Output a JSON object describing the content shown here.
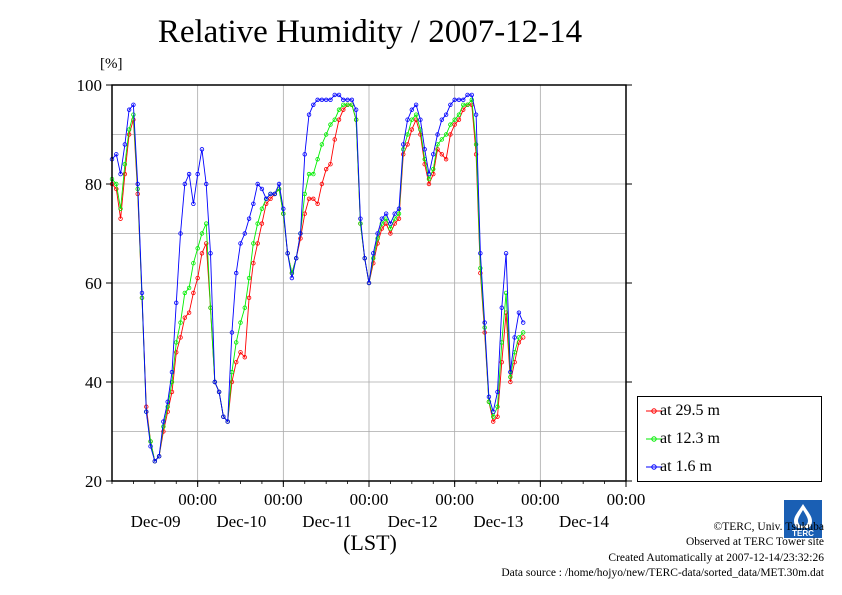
{
  "title": "Relative Humidity / 2007-12-14",
  "unit_label": "[%]",
  "x_axis_title": "(LST)",
  "legend": [
    {
      "label": "at 29.5 m",
      "color": "#ff0000"
    },
    {
      "label": "at 12.3 m",
      "color": "#00ee00"
    },
    {
      "label": "at 1.6 m",
      "color": "#0000ff"
    }
  ],
  "credits": {
    "line1": "©TERC, Univ. Tsukuba",
    "line2": "Observed at TERC Tower site",
    "line3": "Created Automatically at 2007-12-14/23:32:26",
    "line4": "Data source : /home/hojyo/new/TERC-data/sorted_data/MET.30m.dat"
  },
  "logo_text": "TERC",
  "chart_data": {
    "type": "line",
    "xlabel": "(LST)",
    "ylabel": "[%]",
    "ylim": [
      20,
      100
    ],
    "yticks": [
      20,
      40,
      60,
      80,
      100
    ],
    "xlim_days": [
      -1.0,
      5.0
    ],
    "xticks": [
      {
        "time": "00:00",
        "date": "Dec-09",
        "day": 0
      },
      {
        "time": "00:00",
        "date": "Dec-10",
        "day": 1
      },
      {
        "time": "00:00",
        "date": "Dec-11",
        "day": 2
      },
      {
        "time": "00:00",
        "date": "Dec-12",
        "day": 3
      },
      {
        "time": "00:00",
        "date": "Dec-13",
        "day": 4
      },
      {
        "time": "00:00",
        "date": "Dec-14",
        "day": 5
      }
    ],
    "grid": true,
    "legend_position": "outside-right-bottom",
    "series": [
      {
        "name": "at 29.5 m",
        "color": "#ff0000",
        "points": [
          [
            -1.0,
            80
          ],
          [
            -0.95,
            79
          ],
          [
            -0.9,
            73
          ],
          [
            -0.85,
            82
          ],
          [
            -0.8,
            90
          ],
          [
            -0.75,
            93
          ],
          [
            -0.7,
            78
          ],
          [
            -0.65,
            57
          ],
          [
            -0.6,
            35
          ],
          [
            -0.55,
            28
          ],
          [
            -0.5,
            24
          ],
          [
            -0.45,
            25
          ],
          [
            -0.4,
            30
          ],
          [
            -0.35,
            34
          ],
          [
            -0.3,
            38
          ],
          [
            -0.25,
            46
          ],
          [
            -0.2,
            49
          ],
          [
            -0.15,
            53
          ],
          [
            -0.1,
            54
          ],
          [
            -0.05,
            58
          ],
          [
            0.0,
            61
          ],
          [
            0.05,
            66
          ],
          [
            0.1,
            68
          ],
          [
            0.15,
            55
          ],
          [
            0.2,
            40
          ],
          [
            0.25,
            38
          ],
          [
            0.3,
            33
          ],
          [
            0.35,
            32
          ],
          [
            0.4,
            40
          ],
          [
            0.45,
            44
          ],
          [
            0.5,
            46
          ],
          [
            0.55,
            45
          ],
          [
            0.6,
            57
          ],
          [
            0.65,
            64
          ],
          [
            0.7,
            68
          ],
          [
            0.75,
            72
          ],
          [
            0.8,
            76
          ],
          [
            0.85,
            77
          ],
          [
            0.9,
            78
          ],
          [
            0.95,
            79
          ],
          [
            1.0,
            74
          ],
          [
            1.05,
            66
          ],
          [
            1.1,
            62
          ],
          [
            1.15,
            65
          ],
          [
            1.2,
            69
          ],
          [
            1.25,
            74
          ],
          [
            1.3,
            77
          ],
          [
            1.35,
            77
          ],
          [
            1.4,
            76
          ],
          [
            1.45,
            80
          ],
          [
            1.5,
            83
          ],
          [
            1.55,
            84
          ],
          [
            1.6,
            89
          ],
          [
            1.65,
            93
          ],
          [
            1.7,
            95
          ],
          [
            1.75,
            96
          ],
          [
            1.8,
            96
          ],
          [
            1.85,
            93
          ],
          [
            1.9,
            72
          ],
          [
            1.95,
            65
          ],
          [
            2.0,
            60
          ],
          [
            2.05,
            64
          ],
          [
            2.1,
            68
          ],
          [
            2.15,
            71
          ],
          [
            2.2,
            72
          ],
          [
            2.25,
            70
          ],
          [
            2.3,
            72
          ],
          [
            2.35,
            73
          ],
          [
            2.4,
            86
          ],
          [
            2.45,
            88
          ],
          [
            2.5,
            91
          ],
          [
            2.55,
            93
          ],
          [
            2.6,
            90
          ],
          [
            2.65,
            84
          ],
          [
            2.7,
            80
          ],
          [
            2.75,
            82
          ],
          [
            2.8,
            87
          ],
          [
            2.85,
            86
          ],
          [
            2.9,
            85
          ],
          [
            2.95,
            90
          ],
          [
            3.0,
            92
          ],
          [
            3.05,
            93
          ],
          [
            3.1,
            95
          ],
          [
            3.15,
            96
          ],
          [
            3.2,
            96
          ],
          [
            3.25,
            86
          ],
          [
            3.3,
            62
          ],
          [
            3.35,
            50
          ],
          [
            3.4,
            36
          ],
          [
            3.45,
            32
          ],
          [
            3.5,
            33
          ],
          [
            3.55,
            44
          ],
          [
            3.6,
            54
          ],
          [
            3.65,
            40
          ],
          [
            3.7,
            44
          ],
          [
            3.75,
            48
          ],
          [
            3.8,
            49
          ]
        ]
      },
      {
        "name": "at 12.3 m",
        "color": "#00ee00",
        "points": [
          [
            -1.0,
            81
          ],
          [
            -0.95,
            80
          ],
          [
            -0.9,
            75
          ],
          [
            -0.85,
            84
          ],
          [
            -0.8,
            91
          ],
          [
            -0.75,
            94
          ],
          [
            -0.7,
            79
          ],
          [
            -0.65,
            57
          ],
          [
            -0.6,
            34
          ],
          [
            -0.55,
            28
          ],
          [
            -0.5,
            24
          ],
          [
            -0.45,
            25
          ],
          [
            -0.4,
            31
          ],
          [
            -0.35,
            35
          ],
          [
            -0.3,
            40
          ],
          [
            -0.25,
            48
          ],
          [
            -0.2,
            52
          ],
          [
            -0.15,
            58
          ],
          [
            -0.1,
            59
          ],
          [
            -0.05,
            64
          ],
          [
            0.0,
            67
          ],
          [
            0.05,
            70
          ],
          [
            0.1,
            72
          ],
          [
            0.15,
            55
          ],
          [
            0.2,
            40
          ],
          [
            0.25,
            38
          ],
          [
            0.3,
            33
          ],
          [
            0.35,
            32
          ],
          [
            0.4,
            42
          ],
          [
            0.45,
            48
          ],
          [
            0.5,
            52
          ],
          [
            0.55,
            55
          ],
          [
            0.6,
            61
          ],
          [
            0.65,
            68
          ],
          [
            0.7,
            72
          ],
          [
            0.75,
            75
          ],
          [
            0.8,
            77
          ],
          [
            0.85,
            78
          ],
          [
            0.9,
            78
          ],
          [
            0.95,
            79
          ],
          [
            1.0,
            74
          ],
          [
            1.05,
            66
          ],
          [
            1.1,
            62
          ],
          [
            1.15,
            65
          ],
          [
            1.2,
            70
          ],
          [
            1.25,
            78
          ],
          [
            1.3,
            82
          ],
          [
            1.35,
            82
          ],
          [
            1.4,
            85
          ],
          [
            1.45,
            88
          ],
          [
            1.5,
            90
          ],
          [
            1.55,
            92
          ],
          [
            1.6,
            93
          ],
          [
            1.65,
            95
          ],
          [
            1.7,
            96
          ],
          [
            1.75,
            96
          ],
          [
            1.8,
            96
          ],
          [
            1.85,
            93
          ],
          [
            1.9,
            72
          ],
          [
            1.95,
            65
          ],
          [
            2.0,
            60
          ],
          [
            2.05,
            65
          ],
          [
            2.1,
            69
          ],
          [
            2.15,
            72
          ],
          [
            2.2,
            73
          ],
          [
            2.25,
            71
          ],
          [
            2.3,
            73
          ],
          [
            2.35,
            74
          ],
          [
            2.4,
            87
          ],
          [
            2.45,
            90
          ],
          [
            2.5,
            93
          ],
          [
            2.55,
            94
          ],
          [
            2.6,
            91
          ],
          [
            2.65,
            85
          ],
          [
            2.7,
            81
          ],
          [
            2.75,
            83
          ],
          [
            2.8,
            88
          ],
          [
            2.85,
            89
          ],
          [
            2.9,
            90
          ],
          [
            2.95,
            92
          ],
          [
            3.0,
            93
          ],
          [
            3.05,
            94
          ],
          [
            3.1,
            96
          ],
          [
            3.15,
            96
          ],
          [
            3.2,
            97
          ],
          [
            3.25,
            88
          ],
          [
            3.3,
            63
          ],
          [
            3.35,
            51
          ],
          [
            3.4,
            36
          ],
          [
            3.45,
            33
          ],
          [
            3.5,
            35
          ],
          [
            3.55,
            48
          ],
          [
            3.6,
            58
          ],
          [
            3.65,
            41
          ],
          [
            3.7,
            46
          ],
          [
            3.75,
            49
          ],
          [
            3.8,
            50
          ]
        ]
      },
      {
        "name": "at 1.6 m",
        "color": "#0000ff",
        "points": [
          [
            -1.0,
            85
          ],
          [
            -0.95,
            86
          ],
          [
            -0.9,
            82
          ],
          [
            -0.85,
            88
          ],
          [
            -0.8,
            95
          ],
          [
            -0.75,
            96
          ],
          [
            -0.7,
            80
          ],
          [
            -0.65,
            58
          ],
          [
            -0.6,
            34
          ],
          [
            -0.55,
            27
          ],
          [
            -0.5,
            24
          ],
          [
            -0.45,
            25
          ],
          [
            -0.4,
            32
          ],
          [
            -0.35,
            36
          ],
          [
            -0.3,
            42
          ],
          [
            -0.25,
            56
          ],
          [
            -0.2,
            70
          ],
          [
            -0.15,
            80
          ],
          [
            -0.1,
            82
          ],
          [
            -0.05,
            76
          ],
          [
            0.0,
            82
          ],
          [
            0.05,
            87
          ],
          [
            0.1,
            80
          ],
          [
            0.15,
            66
          ],
          [
            0.2,
            40
          ],
          [
            0.25,
            38
          ],
          [
            0.3,
            33
          ],
          [
            0.35,
            32
          ],
          [
            0.4,
            50
          ],
          [
            0.45,
            62
          ],
          [
            0.5,
            68
          ],
          [
            0.55,
            70
          ],
          [
            0.6,
            73
          ],
          [
            0.65,
            76
          ],
          [
            0.7,
            80
          ],
          [
            0.75,
            79
          ],
          [
            0.8,
            77
          ],
          [
            0.85,
            78
          ],
          [
            0.9,
            78
          ],
          [
            0.95,
            80
          ],
          [
            1.0,
            75
          ],
          [
            1.05,
            66
          ],
          [
            1.1,
            61
          ],
          [
            1.15,
            65
          ],
          [
            1.2,
            70
          ],
          [
            1.25,
            86
          ],
          [
            1.3,
            94
          ],
          [
            1.35,
            96
          ],
          [
            1.4,
            97
          ],
          [
            1.45,
            97
          ],
          [
            1.5,
            97
          ],
          [
            1.55,
            97
          ],
          [
            1.6,
            98
          ],
          [
            1.65,
            98
          ],
          [
            1.7,
            97
          ],
          [
            1.75,
            97
          ],
          [
            1.8,
            97
          ],
          [
            1.85,
            95
          ],
          [
            1.9,
            73
          ],
          [
            1.95,
            65
          ],
          [
            2.0,
            60
          ],
          [
            2.05,
            66
          ],
          [
            2.1,
            70
          ],
          [
            2.15,
            73
          ],
          [
            2.2,
            74
          ],
          [
            2.25,
            72
          ],
          [
            2.3,
            74
          ],
          [
            2.35,
            75
          ],
          [
            2.4,
            88
          ],
          [
            2.45,
            93
          ],
          [
            2.5,
            95
          ],
          [
            2.55,
            96
          ],
          [
            2.6,
            93
          ],
          [
            2.65,
            87
          ],
          [
            2.7,
            82
          ],
          [
            2.75,
            86
          ],
          [
            2.8,
            90
          ],
          [
            2.85,
            93
          ],
          [
            2.9,
            94
          ],
          [
            2.95,
            96
          ],
          [
            3.0,
            97
          ],
          [
            3.05,
            97
          ],
          [
            3.1,
            97
          ],
          [
            3.15,
            98
          ],
          [
            3.2,
            98
          ],
          [
            3.25,
            94
          ],
          [
            3.3,
            66
          ],
          [
            3.35,
            52
          ],
          [
            3.4,
            37
          ],
          [
            3.45,
            34
          ],
          [
            3.5,
            38
          ],
          [
            3.55,
            55
          ],
          [
            3.6,
            66
          ],
          [
            3.65,
            42
          ],
          [
            3.7,
            49
          ],
          [
            3.75,
            54
          ],
          [
            3.8,
            52
          ]
        ]
      }
    ]
  }
}
